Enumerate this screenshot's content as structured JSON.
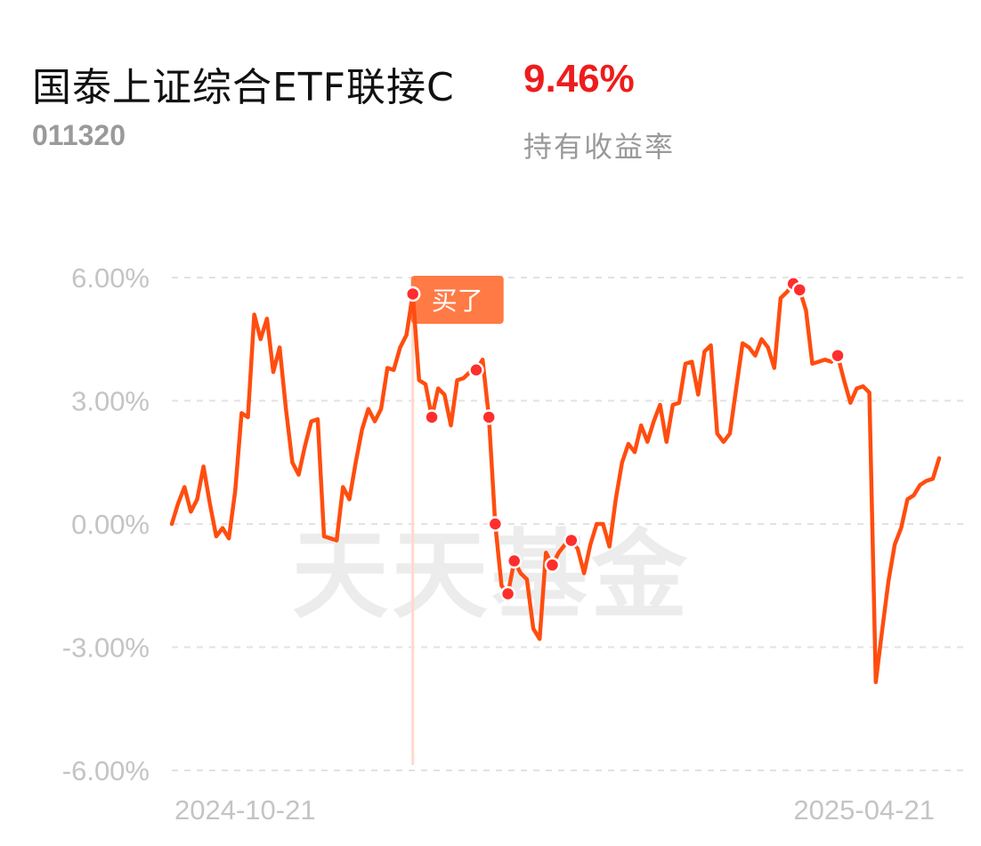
{
  "header": {
    "fund_name": "国泰上证综合ETF联接C",
    "fund_code": "011320",
    "return_value": "9.46%",
    "return_label": "持有收益率"
  },
  "colors": {
    "line": "#ff4d0f",
    "point": "#ff2d2d",
    "grid": "#e2e2e2",
    "tick": "#c4c4c4",
    "buy_tag": "#ff7a45"
  },
  "chart_data": {
    "type": "line",
    "watermark": "天天基金",
    "ylim": [
      -6,
      6
    ],
    "y_ticks": [
      6,
      3,
      0,
      -3,
      -6
    ],
    "y_tick_labels": [
      "6.00%",
      "3.00%",
      "0.00%",
      "-3.00%",
      "-6.00%"
    ],
    "x_tick_labels": [
      "2024-10-21",
      "2025-04-21"
    ],
    "buy_marker": {
      "label": "买了",
      "index": 38
    },
    "marked_points": [
      38,
      41,
      48,
      50,
      51,
      53,
      54,
      60,
      63,
      98,
      99,
      105
    ],
    "series": [
      {
        "values": [
          0.0,
          0.5,
          0.9,
          0.3,
          0.6,
          1.4,
          0.5,
          -0.3,
          -0.1,
          -0.35,
          0.8,
          2.7,
          2.6,
          5.1,
          4.5,
          5.0,
          3.7,
          4.3,
          2.8,
          1.5,
          1.2,
          1.9,
          2.5,
          2.55,
          -0.3,
          -0.35,
          -0.4,
          0.9,
          0.6,
          1.5,
          2.3,
          2.8,
          2.5,
          2.8,
          3.8,
          3.75,
          4.3,
          4.6,
          5.6,
          3.5,
          3.4,
          2.6,
          3.3,
          3.15,
          2.4,
          3.5,
          3.55,
          3.7,
          3.75,
          4.0,
          2.6,
          0.0,
          -1.5,
          -1.7,
          -0.9,
          -1.2,
          -1.35,
          -2.55,
          -2.8,
          -0.7,
          -1.0,
          -0.7,
          -0.5,
          -0.4,
          -0.6,
          -1.2,
          -0.5,
          0.0,
          0.0,
          -0.55,
          0.6,
          1.5,
          1.95,
          1.75,
          2.4,
          2.0,
          2.5,
          2.9,
          2.0,
          2.9,
          2.95,
          3.9,
          3.95,
          3.15,
          4.2,
          4.35,
          2.2,
          2.0,
          2.2,
          3.3,
          4.4,
          4.3,
          4.1,
          4.5,
          4.3,
          3.8,
          5.5,
          5.65,
          5.85,
          5.7,
          5.2,
          3.9,
          3.95,
          4.0,
          3.95,
          4.1,
          3.5,
          2.95,
          3.3,
          3.35,
          3.2,
          -3.85,
          -2.6,
          -1.4,
          -0.5,
          -0.1,
          0.6,
          0.7,
          0.95,
          1.05,
          1.1,
          1.6
        ]
      }
    ]
  }
}
